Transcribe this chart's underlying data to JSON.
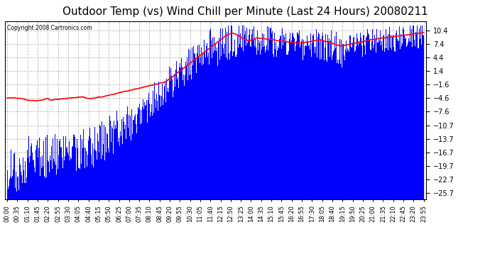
{
  "title": "Outdoor Temp (vs) Wind Chill per Minute (Last 24 Hours) 20080211",
  "copyright_text": "Copyright 2008 Cartronics.com",
  "title_fontsize": 11,
  "background_color": "#ffffff",
  "plot_bg_color": "#ffffff",
  "yticks": [
    10.4,
    7.4,
    4.4,
    1.4,
    -1.6,
    -4.6,
    -7.6,
    -10.7,
    -13.7,
    -16.7,
    -19.7,
    -22.7,
    -25.7
  ],
  "ylim": [
    -27.2,
    12.5
  ],
  "xtick_labels": [
    "00:00",
    "00:35",
    "01:10",
    "01:45",
    "02:20",
    "02:55",
    "03:30",
    "04:05",
    "04:40",
    "05:15",
    "05:50",
    "06:25",
    "07:00",
    "07:35",
    "08:10",
    "08:45",
    "09:20",
    "09:55",
    "10:30",
    "11:05",
    "11:40",
    "12:15",
    "12:50",
    "13:25",
    "14:00",
    "14:35",
    "15:10",
    "15:45",
    "16:20",
    "16:55",
    "17:30",
    "18:05",
    "18:40",
    "19:15",
    "19:50",
    "20:25",
    "21:00",
    "21:35",
    "22:10",
    "22:45",
    "23:20",
    "23:55"
  ],
  "grid_color": "#bbbbbb",
  "grid_linestyle": "--",
  "bar_color": "#0000ff",
  "line_color": "#ff0000",
  "line_width": 1.2
}
